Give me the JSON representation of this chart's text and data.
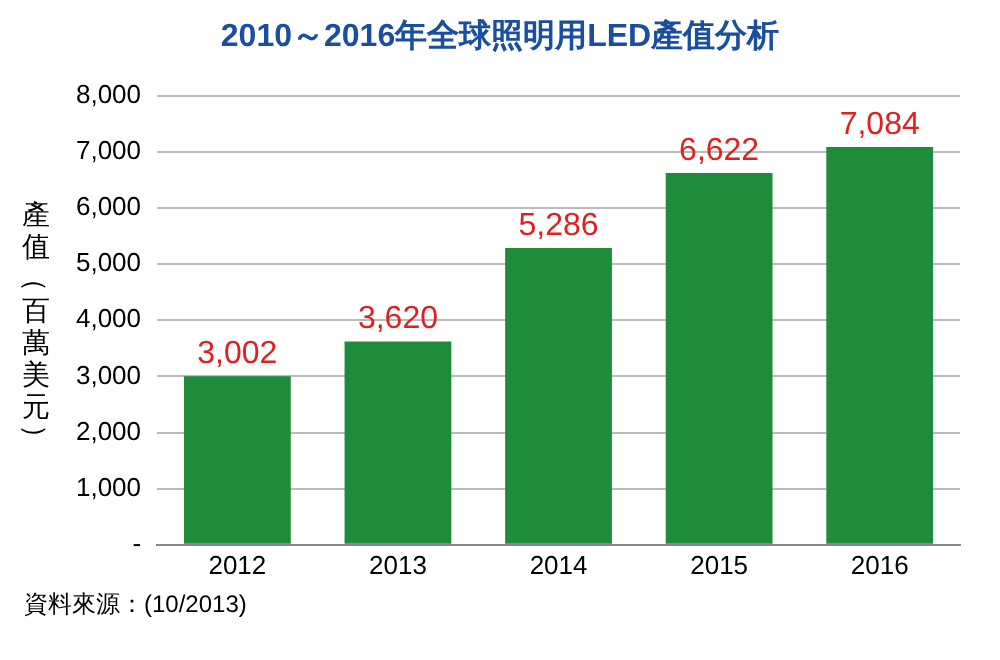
{
  "chart_data": {
    "type": "bar",
    "title": "2010～2016年全球照明用LED產值分析",
    "ylabel": "產值（百萬美元）",
    "categories": [
      "2012",
      "2013",
      "2014",
      "2015",
      "2016"
    ],
    "values": [
      3002,
      3620,
      5286,
      6622,
      7084
    ],
    "value_labels": [
      "3,002",
      "3,620",
      "5,286",
      "6,622",
      "7,084"
    ],
    "color": "#1e8c3a",
    "ylim": [
      0,
      8000
    ],
    "yticks": [
      {
        "value": 0,
        "label": "-"
      },
      {
        "value": 1000,
        "label": "1,000"
      },
      {
        "value": 2000,
        "label": "2,000"
      },
      {
        "value": 3000,
        "label": "3,000"
      },
      {
        "value": 4000,
        "label": "4,000"
      },
      {
        "value": 5000,
        "label": "5,000"
      },
      {
        "value": 6000,
        "label": "6,000"
      },
      {
        "value": 7000,
        "label": "7,000"
      },
      {
        "value": 8000,
        "label": "8,000"
      }
    ],
    "grid": "y",
    "annotations": [
      "資料來源：(10/2013)"
    ]
  }
}
